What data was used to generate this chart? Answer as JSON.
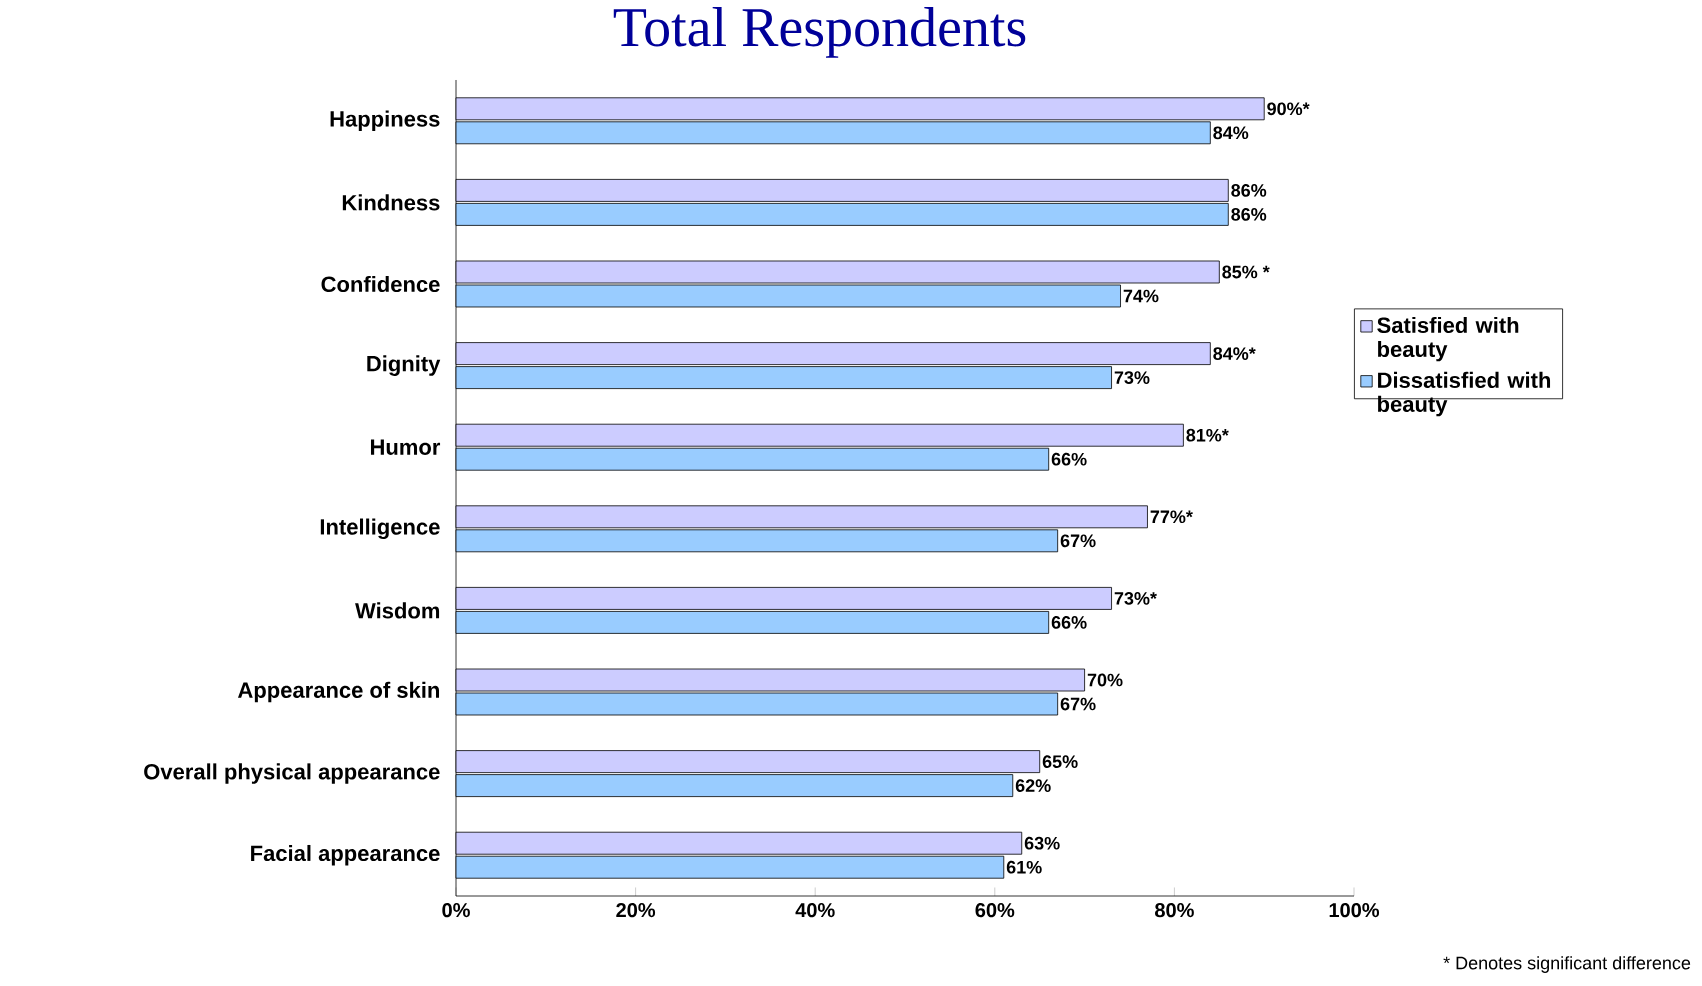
{
  "chart_data": {
    "type": "bar",
    "orientation": "horizontal",
    "title": "Total Respondents",
    "categories": [
      "Happiness",
      "Kindness",
      "Confidence",
      "Dignity",
      "Humor",
      "Intelligence",
      "Wisdom",
      "Appearance of skin",
      "Overall physical appearance",
      "Facial appearance"
    ],
    "series": [
      {
        "name": "Satisfied with beauty",
        "color": "#ccccff",
        "values": [
          90,
          86,
          85,
          84,
          81,
          77,
          73,
          70,
          65,
          63
        ],
        "value_labels": [
          "90%*",
          "86%",
          "85% *",
          "84%*",
          "81%*",
          "77%*",
          "73%*",
          "70%",
          "65%",
          "63%"
        ]
      },
      {
        "name": "Dissatisfied with beauty",
        "color": "#99ccff",
        "values": [
          84,
          86,
          74,
          73,
          66,
          67,
          66,
          67,
          62,
          61
        ],
        "value_labels": [
          "84%",
          "86%",
          "74%",
          "73%",
          "66%",
          "67%",
          "66%",
          "67%",
          "62%",
          "61%"
        ]
      }
    ],
    "xlim": [
      0,
      100
    ],
    "xticks": [
      {
        "value": 0,
        "label": "0%"
      },
      {
        "value": 20,
        "label": "20%"
      },
      {
        "value": 40,
        "label": "40%"
      },
      {
        "value": 60,
        "label": "60%"
      },
      {
        "value": 80,
        "label": "80%"
      },
      {
        "value": 100,
        "label": "100%"
      }
    ],
    "legend": "right",
    "annotations": [
      "* Denotes significant difference"
    ]
  }
}
